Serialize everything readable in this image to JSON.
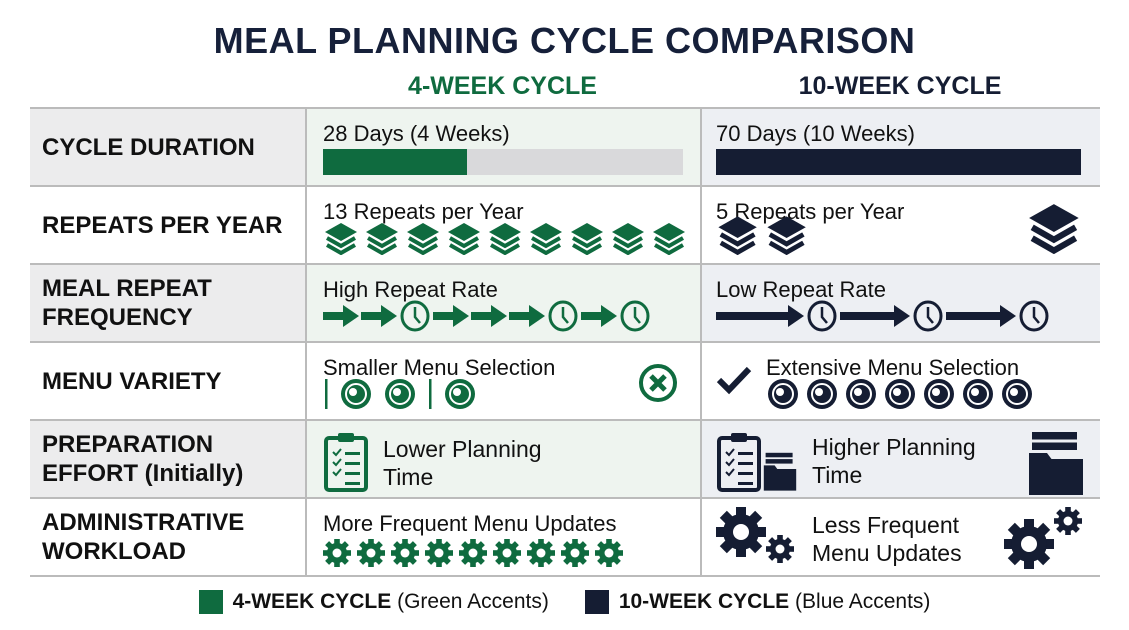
{
  "title": "MEAL PLANNING CYCLE COMPARISON",
  "columns": {
    "a": "4-WEEK CYCLE",
    "b": "10-WEEK CYCLE"
  },
  "colors": {
    "green": "#0f6b3f",
    "navy": "#151d33",
    "track": "#d9d9db"
  },
  "rows": [
    {
      "label": "CYCLE DURATION",
      "a": "28 Days (4 Weeks)",
      "b": "70 Days (10 Weeks)",
      "a_fill": 0.4,
      "b_fill": 1.0
    },
    {
      "label": "REPEATS PER YEAR",
      "a": "13 Repeats per Year",
      "b": "5 Repeats per Year",
      "a_icons": "layers-icon",
      "b_icons": "layers-icon"
    },
    {
      "label": "MEAL REPEAT FREQUENCY",
      "a": "High Repeat Rate",
      "b": "Low Repeat Rate",
      "a_icons": "arrow-clock",
      "b_icons": "arrow-clock"
    },
    {
      "label": "MENU VARIETY",
      "a": "Smaller Menu Selection",
      "b": "Extensive Menu Selection",
      "a_icons": "x-circle-icon",
      "b_icons": "check-icon"
    },
    {
      "label": "PREPARATION EFFORT (Initially)",
      "a": "Lower Planning Time",
      "b": "Higher Planning Time",
      "a_icons": "clipboard-icon",
      "b_icons": "clipboard-folder-icon"
    },
    {
      "label": "ADMINISTRATIVE WORKLOAD",
      "a": "More Frequent Menu Updates",
      "b": "Less Frequent Menu Updates",
      "a_icons": "gear-icon",
      "b_icons": "gears-icon"
    }
  ],
  "legend": [
    {
      "bold": "4-WEEK CYCLE",
      "note": "(Green Accents)",
      "color": "#0f6b3f"
    },
    {
      "bold": "10-WEEK CYCLE",
      "note": "(Blue Accents)",
      "color": "#151d33"
    }
  ]
}
